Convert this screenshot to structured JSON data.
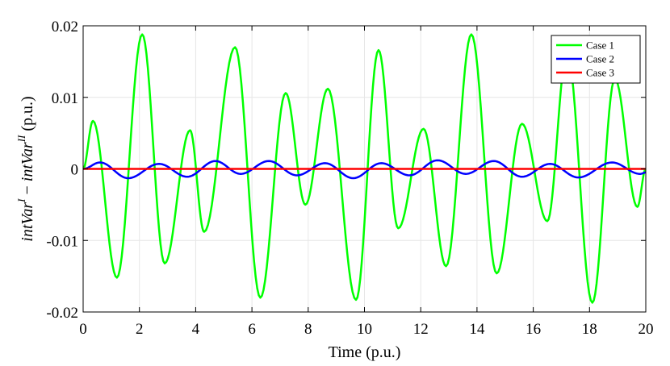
{
  "chart_data": {
    "type": "line",
    "xlabel": "Time (p.u.)",
    "ylabel": {
      "prefix": "intVar",
      "sup1": "I",
      "minus": " − ",
      "mid": "intVar",
      "sup2": "II",
      "suffix": "  (p.u.)"
    },
    "xlim": [
      0,
      20
    ],
    "ylim": [
      -0.02,
      0.02
    ],
    "xticks": [
      0,
      2,
      4,
      6,
      8,
      10,
      12,
      14,
      16,
      18,
      20
    ],
    "xtick_labels": [
      "0",
      "2",
      "4",
      "6",
      "8",
      "10",
      "12",
      "14",
      "16",
      "18",
      "20"
    ],
    "yticks": [
      -0.02,
      -0.01,
      0,
      0.01,
      0.02
    ],
    "ytick_labels": [
      "-0.02",
      "-0.01",
      "0",
      "0.01",
      "0.02"
    ],
    "grid": true,
    "legend_position": "top-right",
    "series": [
      {
        "name": "Case 1",
        "color": "#00ff00",
        "x": [
          0,
          0.35,
          1.2,
          2.1,
          2.9,
          3.8,
          4.3,
          5.4,
          6.3,
          7.2,
          7.9,
          8.7,
          9.7,
          10.5,
          11.2,
          12.1,
          12.9,
          13.8,
          14.7,
          15.6,
          16.5,
          17.2,
          18.1,
          18.9,
          19.7,
          20
        ],
        "y": [
          0,
          0.0067,
          -0.0152,
          0.0188,
          -0.0132,
          0.0054,
          -0.0088,
          0.017,
          -0.018,
          0.0106,
          -0.005,
          0.0112,
          -0.0183,
          0.0166,
          -0.0083,
          0.0056,
          -0.0136,
          0.0188,
          -0.0146,
          0.0063,
          -0.0073,
          0.0163,
          -0.0187,
          0.0126,
          -0.0053,
          0
        ]
      },
      {
        "name": "Case 2",
        "color": "#0000ff",
        "x": [
          0,
          0.6,
          1.6,
          2.7,
          3.7,
          4.7,
          5.6,
          6.6,
          7.6,
          8.6,
          9.6,
          10.6,
          11.6,
          12.6,
          13.6,
          14.6,
          15.6,
          16.6,
          17.6,
          18.8,
          19.8,
          20
        ],
        "y": [
          0,
          0.0009,
          -0.0013,
          0.0007,
          -0.0011,
          0.0011,
          -0.0007,
          0.0011,
          -0.0009,
          0.0008,
          -0.0013,
          0.0008,
          -0.0009,
          0.0012,
          -0.0007,
          0.0011,
          -0.0011,
          0.0007,
          -0.0012,
          0.0009,
          -0.0007,
          -0.0005
        ]
      },
      {
        "name": "Case 3",
        "color": "#ff0000",
        "x": [
          0,
          20
        ],
        "y": [
          0,
          0
        ]
      }
    ]
  }
}
